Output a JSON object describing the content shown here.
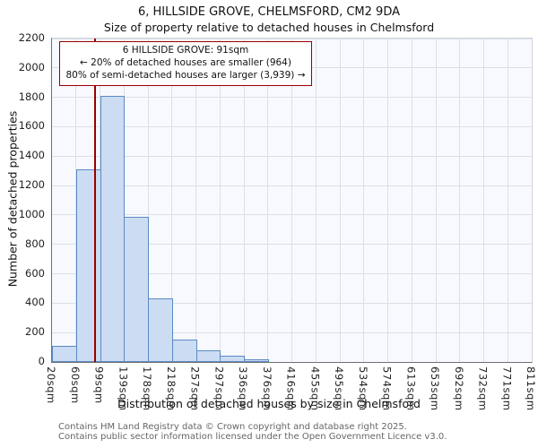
{
  "chart_data": {
    "type": "bar",
    "title": "6, HILLSIDE GROVE, CHELMSFORD, CM2 9DA",
    "subtitle": "Size of property relative to detached houses in Chelmsford",
    "xlabel": "Distribution of detached houses by size in Chelmsford",
    "ylabel": "Number of detached properties",
    "bin_edges": [
      20,
      60,
      99,
      139,
      178,
      218,
      257,
      297,
      336,
      376,
      416,
      455,
      495,
      534,
      574,
      613,
      653,
      692,
      732,
      771,
      811
    ],
    "tick_labels": [
      "20sqm",
      "60sqm",
      "99sqm",
      "139sqm",
      "178sqm",
      "218sqm",
      "257sqm",
      "297sqm",
      "336sqm",
      "376sqm",
      "416sqm",
      "455sqm",
      "495sqm",
      "534sqm",
      "574sqm",
      "613sqm",
      "653sqm",
      "692sqm",
      "732sqm",
      "771sqm",
      "811sqm"
    ],
    "values": [
      110,
      1310,
      1810,
      990,
      430,
      155,
      80,
      40,
      20,
      0,
      0,
      0,
      0,
      0,
      0,
      0,
      0,
      0,
      0,
      0
    ],
    "ylim": [
      0,
      2200
    ],
    "ytick_step": 200,
    "grid": true,
    "legend": "none",
    "marker": {
      "value": 91,
      "color": "#990000"
    },
    "bar_fill": "#ccdcf2",
    "bar_border": "#5b8ac5"
  },
  "annotation": {
    "line1": "6 HILLSIDE GROVE: 91sqm",
    "line2": "← 20% of detached houses are smaller (964)",
    "line3": "80% of semi-detached houses are larger (3,939) →"
  },
  "footer": {
    "line1": "Contains HM Land Registry data © Crown copyright and database right 2025.",
    "line2": "Contains public sector information licensed under the Open Government Licence v3.0."
  }
}
